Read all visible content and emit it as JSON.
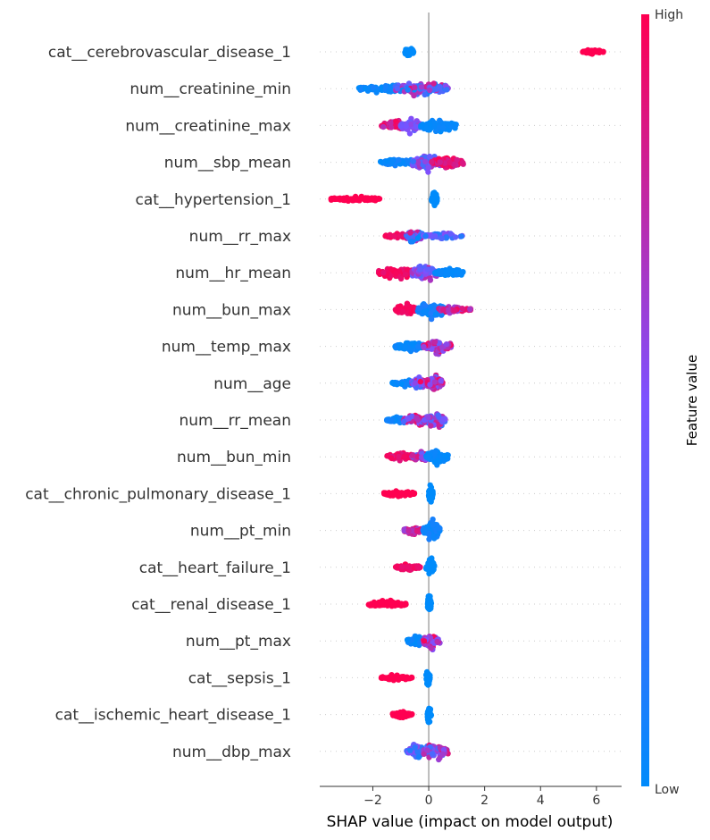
{
  "chart_data": {
    "type": "scatter",
    "subtype": "shap_beeswarm",
    "xlabel": "SHAP value (impact on model output)",
    "xlim": [
      -3.9,
      6.9
    ],
    "xticks": [
      -2,
      0,
      2,
      4,
      6
    ],
    "xtick_labels": [
      "−2",
      "0",
      "2",
      "4",
      "6"
    ],
    "colorbar": {
      "title": "Feature value",
      "high_label": "High",
      "low_label": "Low",
      "low_color": "#008bfb",
      "mid_color": "#7c52ff",
      "high_color": "#ff0051"
    },
    "features": [
      {
        "name": "cat__cerebrovascular_disease_1",
        "clusters": [
          {
            "lo": -0.85,
            "hi": -0.55,
            "cLo": 0.0,
            "cHi": 0.0,
            "n": 70,
            "spread": 8
          },
          {
            "lo": 5.5,
            "hi": 6.25,
            "cLo": 1.0,
            "cHi": 1.0,
            "n": 50,
            "spread": 4
          }
        ]
      },
      {
        "name": "num__creatinine_min",
        "clusters": [
          {
            "lo": -2.5,
            "hi": -0.3,
            "cLo": 0.0,
            "cHi": 0.1,
            "n": 110,
            "spread": 7
          },
          {
            "lo": -1.2,
            "hi": 0.7,
            "cLo": 0.0,
            "cHi": 0.9,
            "n": 110,
            "spread": 12
          }
        ]
      },
      {
        "name": "num__creatinine_max",
        "clusters": [
          {
            "lo": -1.7,
            "hi": -0.7,
            "cLo": 0.7,
            "cHi": 1.0,
            "n": 70,
            "spread": 8
          },
          {
            "lo": -1.0,
            "hi": -0.3,
            "cLo": 0.4,
            "cHi": 0.6,
            "n": 60,
            "spread": 11
          },
          {
            "lo": -0.3,
            "hi": 1.0,
            "cLo": 0.0,
            "cHi": 0.05,
            "n": 90,
            "spread": 11
          }
        ]
      },
      {
        "name": "num__sbp_mean",
        "clusters": [
          {
            "lo": -1.8,
            "hi": -0.3,
            "cLo": 0.0,
            "cHi": 0.1,
            "n": 80,
            "spread": 6
          },
          {
            "lo": -0.6,
            "hi": 0.5,
            "cLo": 0.2,
            "cHi": 0.7,
            "n": 100,
            "spread": 13
          },
          {
            "lo": 0.1,
            "hi": 1.25,
            "cLo": 0.8,
            "cHi": 1.0,
            "n": 80,
            "spread": 8
          }
        ]
      },
      {
        "name": "cat__hypertension_1",
        "clusters": [
          {
            "lo": -3.5,
            "hi": -1.7,
            "cLo": 1.0,
            "cHi": 1.0,
            "n": 90,
            "spread": 4
          },
          {
            "lo": 0.1,
            "hi": 0.3,
            "cLo": 0.0,
            "cHi": 0.0,
            "n": 50,
            "spread": 14
          }
        ]
      },
      {
        "name": "num__rr_max",
        "clusters": [
          {
            "lo": -1.6,
            "hi": -0.4,
            "cLo": 0.9,
            "cHi": 1.0,
            "n": 40,
            "spread": 5
          },
          {
            "lo": -0.8,
            "hi": -0.2,
            "cLo": 0.0,
            "cHi": 0.9,
            "n": 90,
            "spread": 13
          },
          {
            "lo": -0.2,
            "hi": 1.2,
            "cLo": 0.1,
            "cHi": 0.6,
            "n": 50,
            "spread": 5
          }
        ]
      },
      {
        "name": "num__hr_mean",
        "clusters": [
          {
            "lo": -1.8,
            "hi": -0.4,
            "cLo": 0.9,
            "cHi": 1.0,
            "n": 100,
            "spread": 9
          },
          {
            "lo": -0.6,
            "hi": 0.4,
            "cLo": 0.3,
            "cHi": 0.8,
            "n": 90,
            "spread": 14
          },
          {
            "lo": 0.2,
            "hi": 1.25,
            "cLo": 0.0,
            "cHi": 0.05,
            "n": 70,
            "spread": 7
          }
        ]
      },
      {
        "name": "num__bun_max",
        "clusters": [
          {
            "lo": -1.2,
            "hi": -0.4,
            "cLo": 0.9,
            "cHi": 1.0,
            "n": 70,
            "spread": 9
          },
          {
            "lo": -0.4,
            "hi": 0.6,
            "cLo": 0.0,
            "cHi": 0.15,
            "n": 110,
            "spread": 13
          },
          {
            "lo": 0.3,
            "hi": 1.5,
            "cLo": 0.5,
            "cHi": 1.0,
            "n": 50,
            "spread": 6
          }
        ]
      },
      {
        "name": "num__temp_max",
        "clusters": [
          {
            "lo": -1.2,
            "hi": -0.1,
            "cLo": 0.0,
            "cHi": 0.1,
            "n": 70,
            "spread": 7
          },
          {
            "lo": -0.2,
            "hi": 0.8,
            "cLo": 0.4,
            "cHi": 1.0,
            "n": 100,
            "spread": 13
          }
        ]
      },
      {
        "name": "num__age",
        "clusters": [
          {
            "lo": -1.3,
            "hi": -0.4,
            "cLo": 0.0,
            "cHi": 0.1,
            "n": 50,
            "spread": 5
          },
          {
            "lo": -0.6,
            "hi": 0.0,
            "cLo": 0.2,
            "cHi": 1.0,
            "n": 70,
            "spread": 10
          },
          {
            "lo": -0.1,
            "hi": 0.5,
            "cLo": 0.4,
            "cHi": 1.0,
            "n": 90,
            "spread": 14
          }
        ]
      },
      {
        "name": "num__rr_mean",
        "clusters": [
          {
            "lo": -1.5,
            "hi": -0.5,
            "cLo": 0.0,
            "cHi": 0.1,
            "n": 60,
            "spread": 5
          },
          {
            "lo": -0.9,
            "hi": 0.0,
            "cLo": 0.3,
            "cHi": 1.0,
            "n": 70,
            "spread": 9
          },
          {
            "lo": -0.2,
            "hi": 0.6,
            "cLo": 0.2,
            "cHi": 0.9,
            "n": 90,
            "spread": 13
          }
        ]
      },
      {
        "name": "num__bun_min",
        "clusters": [
          {
            "lo": -1.5,
            "hi": -0.5,
            "cLo": 0.85,
            "cHi": 1.0,
            "n": 60,
            "spread": 7
          },
          {
            "lo": -0.6,
            "hi": 0.1,
            "cLo": 0.3,
            "cHi": 1.0,
            "n": 60,
            "spread": 10
          },
          {
            "lo": -0.1,
            "hi": 0.7,
            "cLo": 0.0,
            "cHi": 0.05,
            "n": 80,
            "spread": 13
          }
        ]
      },
      {
        "name": "cat__chronic_pulmonary_disease_1",
        "clusters": [
          {
            "lo": -1.6,
            "hi": -0.5,
            "cLo": 1.0,
            "cHi": 1.0,
            "n": 60,
            "spread": 5
          },
          {
            "lo": 0.0,
            "hi": 0.15,
            "cLo": 0.0,
            "cHi": 0.0,
            "n": 40,
            "spread": 16
          }
        ]
      },
      {
        "name": "num__pt_min",
        "clusters": [
          {
            "lo": -0.9,
            "hi": -0.2,
            "cLo": 0.6,
            "cHi": 1.0,
            "n": 60,
            "spread": 7
          },
          {
            "lo": -0.2,
            "hi": 0.4,
            "cLo": 0.0,
            "cHi": 0.1,
            "n": 70,
            "spread": 15
          }
        ]
      },
      {
        "name": "cat__heart_failure_1",
        "clusters": [
          {
            "lo": -1.2,
            "hi": -0.3,
            "cLo": 0.9,
            "cHi": 1.0,
            "n": 60,
            "spread": 5
          },
          {
            "lo": -0.1,
            "hi": 0.2,
            "cLo": 0.0,
            "cHi": 0.0,
            "n": 45,
            "spread": 16
          }
        ]
      },
      {
        "name": "cat__renal_disease_1",
        "clusters": [
          {
            "lo": -2.2,
            "hi": -0.8,
            "cLo": 1.0,
            "cHi": 1.0,
            "n": 70,
            "spread": 6
          },
          {
            "lo": -0.05,
            "hi": 0.1,
            "cLo": 0.0,
            "cHi": 0.0,
            "n": 40,
            "spread": 16
          }
        ]
      },
      {
        "name": "num__pt_max",
        "clusters": [
          {
            "lo": -0.8,
            "hi": -0.1,
            "cLo": 0.0,
            "cHi": 0.1,
            "n": 60,
            "spread": 11
          },
          {
            "lo": -0.2,
            "hi": 0.4,
            "cLo": 0.4,
            "cHi": 1.0,
            "n": 70,
            "spread": 13
          }
        ]
      },
      {
        "name": "cat__sepsis_1",
        "clusters": [
          {
            "lo": -1.7,
            "hi": -0.6,
            "cLo": 1.0,
            "cHi": 1.0,
            "n": 60,
            "spread": 5
          },
          {
            "lo": -0.1,
            "hi": 0.05,
            "cLo": 0.0,
            "cHi": 0.0,
            "n": 40,
            "spread": 16
          }
        ]
      },
      {
        "name": "cat__ischemic_heart_disease_1",
        "clusters": [
          {
            "lo": -1.3,
            "hi": -0.6,
            "cLo": 1.0,
            "cHi": 1.0,
            "n": 50,
            "spread": 5
          },
          {
            "lo": -0.05,
            "hi": 0.1,
            "cLo": 0.0,
            "cHi": 0.0,
            "n": 40,
            "spread": 16
          }
        ]
      },
      {
        "name": "num__dbp_max",
        "clusters": [
          {
            "lo": -0.8,
            "hi": -0.1,
            "cLo": 0.0,
            "cHi": 0.6,
            "n": 60,
            "spread": 12
          },
          {
            "lo": -0.2,
            "hi": 0.7,
            "cLo": 0.2,
            "cHi": 0.9,
            "n": 80,
            "spread": 14
          }
        ]
      }
    ]
  }
}
